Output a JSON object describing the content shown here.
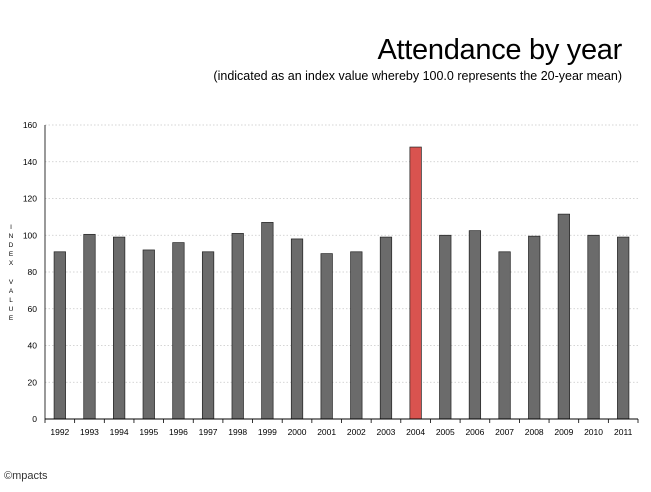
{
  "chart_data": {
    "type": "bar",
    "title": "Attendance by year",
    "subtitle": "(indicated as an index value whereby 100.0 represents the 20-year mean)",
    "xlabel": "",
    "ylabel": "INDEX VALUE",
    "ylim": [
      0,
      160
    ],
    "yticks": [
      0,
      20,
      40,
      60,
      80,
      100,
      120,
      140,
      160
    ],
    "grid": true,
    "legend": "none",
    "categories": [
      "1992",
      "1993",
      "1994",
      "1995",
      "1996",
      "1997",
      "1998",
      "1999",
      "2000",
      "2001",
      "2002",
      "2003",
      "2004",
      "2005",
      "2006",
      "2007",
      "2008",
      "2009",
      "2010",
      "2011"
    ],
    "values": [
      91,
      100.5,
      99,
      92,
      96,
      91,
      101,
      107,
      98,
      90,
      91,
      99,
      148,
      100,
      102.5,
      91,
      99.5,
      111.5,
      100,
      99
    ],
    "highlight_category": "2004",
    "colors": {
      "bar": "#6b6b6b",
      "highlight": "#d9534f",
      "bar_stroke": "#222222",
      "grid": "#c8c8c8"
    }
  },
  "footer": {
    "logo_text": "©mpacts"
  }
}
